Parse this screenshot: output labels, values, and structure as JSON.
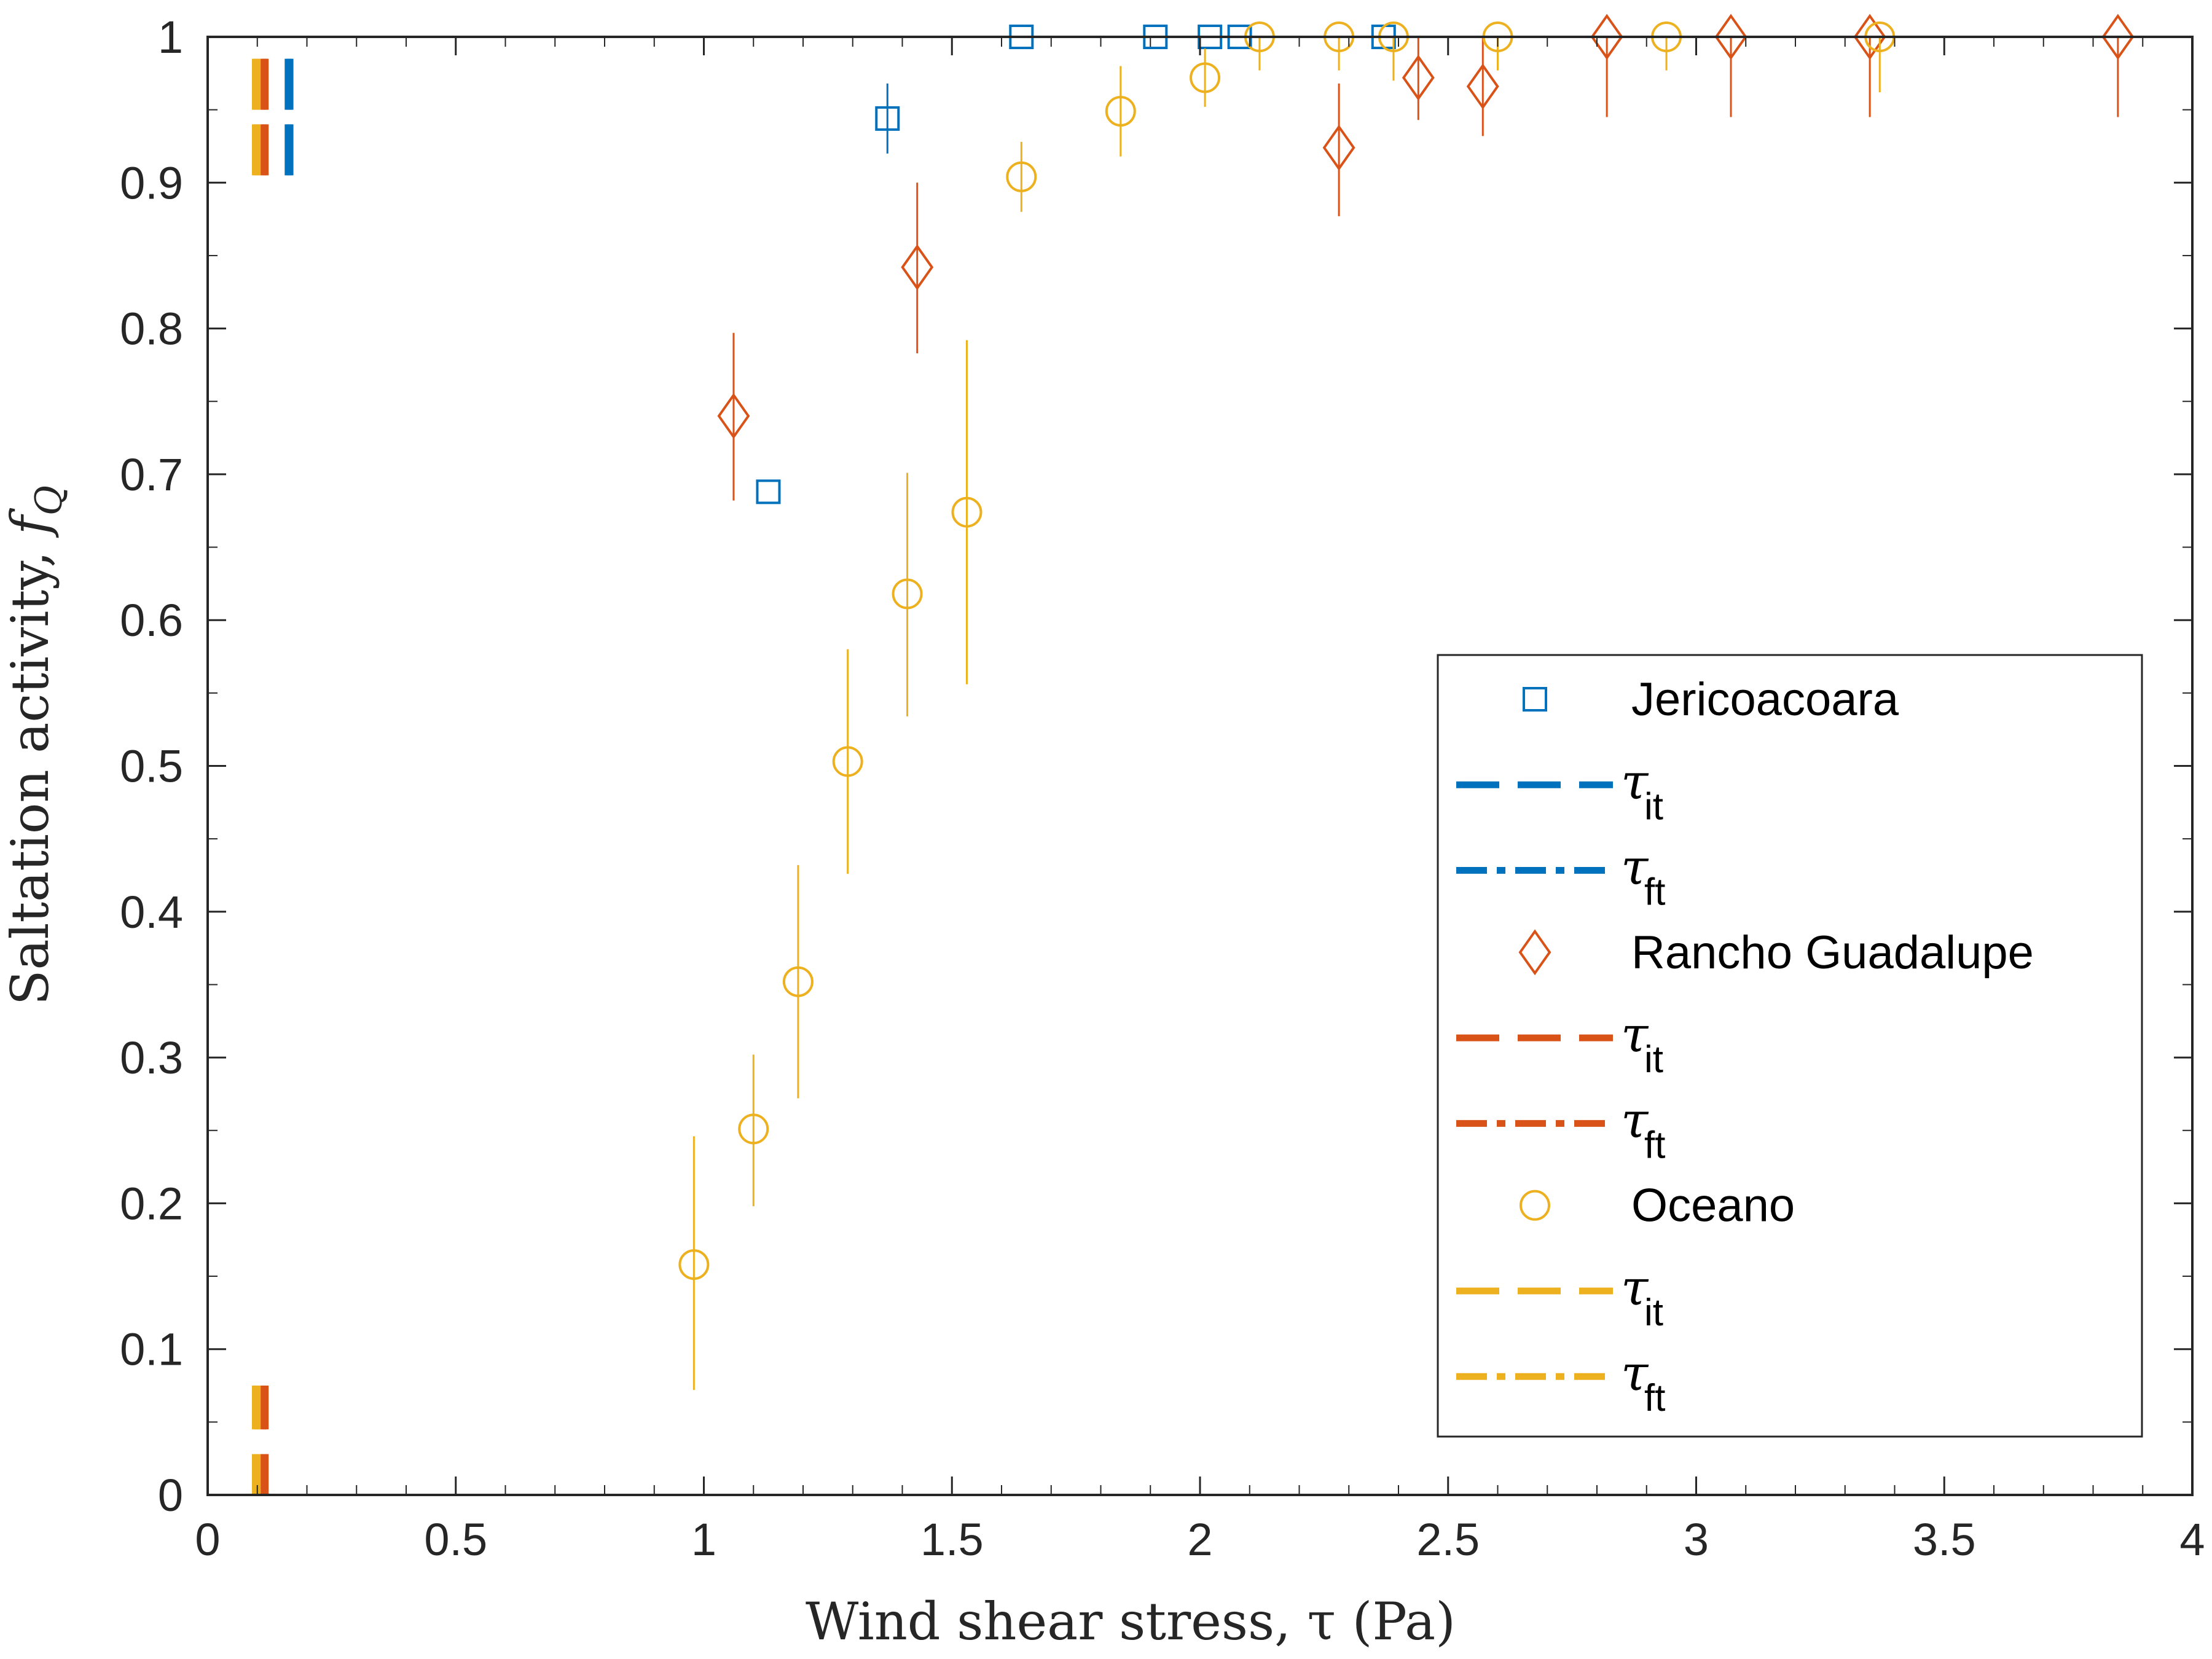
{
  "chart_data": {
    "type": "scatter",
    "xlabel": "Wind shear stress, τ (Pa)",
    "ylabel_main": "Saltation activity, ",
    "ylabel_sym": "f",
    "ylabel_sub": "Q",
    "xlim": [
      0,
      4
    ],
    "ylim": [
      0,
      1
    ],
    "xticks": [
      "0",
      "0.5",
      "1",
      "1.5",
      "2",
      "2.5",
      "3",
      "3.5",
      "4"
    ],
    "yticks": [
      "0",
      "0.1",
      "0.2",
      "0.3",
      "0.4",
      "0.5",
      "0.6",
      "0.7",
      "0.8",
      "0.9",
      "1"
    ],
    "grid": false,
    "legend_position": "lower-right",
    "series": [
      {
        "name": "Jericoacoara",
        "marker": "square",
        "color": "#0072BD",
        "points": [
          {
            "x": 1.13,
            "y": 0.688,
            "ylo": 0.688,
            "yhi": 0.688
          },
          {
            "x": 1.37,
            "y": 0.944,
            "ylo": 0.92,
            "yhi": 0.968
          },
          {
            "x": 1.64,
            "y": 1.0,
            "ylo": 1.0,
            "yhi": 1.0
          },
          {
            "x": 1.91,
            "y": 1.0,
            "ylo": 1.0,
            "yhi": 1.0
          },
          {
            "x": 2.02,
            "y": 1.0,
            "ylo": 1.0,
            "yhi": 1.0
          },
          {
            "x": 2.08,
            "y": 1.0,
            "ylo": 1.0,
            "yhi": 1.0
          },
          {
            "x": 2.37,
            "y": 1.0,
            "ylo": 1.0,
            "yhi": 1.0
          }
        ],
        "tau_it": 0.166,
        "tau_ft": 0.162,
        "tau_it_label": "τ",
        "tau_it_sub": "it",
        "tau_ft_label": "τ",
        "tau_ft_sub": "ft"
      },
      {
        "name": "Rancho Guadalupe",
        "marker": "diamond",
        "color": "#D95319",
        "points": [
          {
            "x": 1.06,
            "y": 0.74,
            "ylo": 0.682,
            "yhi": 0.797
          },
          {
            "x": 1.43,
            "y": 0.842,
            "ylo": 0.783,
            "yhi": 0.9
          },
          {
            "x": 2.28,
            "y": 0.924,
            "ylo": 0.877,
            "yhi": 0.968
          },
          {
            "x": 2.44,
            "y": 0.972,
            "ylo": 0.943,
            "yhi": 1.0
          },
          {
            "x": 2.57,
            "y": 0.966,
            "ylo": 0.932,
            "yhi": 1.0
          },
          {
            "x": 2.82,
            "y": 1.0,
            "ylo": 0.945,
            "yhi": 1.0
          },
          {
            "x": 3.07,
            "y": 1.0,
            "ylo": 0.945,
            "yhi": 1.0
          },
          {
            "x": 3.35,
            "y": 1.0,
            "ylo": 0.945,
            "yhi": 1.0
          },
          {
            "x": 3.85,
            "y": 1.0,
            "ylo": 0.945,
            "yhi": 1.0
          }
        ],
        "tau_it": 0.116,
        "tau_ft": 0.112,
        "tau_it_label": "τ",
        "tau_it_sub": "it",
        "tau_ft_label": "τ",
        "tau_ft_sub": "ft"
      },
      {
        "name": "Oceano",
        "marker": "circle",
        "color": "#EDB120",
        "points": [
          {
            "x": 0.98,
            "y": 0.158,
            "ylo": 0.072,
            "yhi": 0.246
          },
          {
            "x": 1.1,
            "y": 0.251,
            "ylo": 0.198,
            "yhi": 0.302
          },
          {
            "x": 1.19,
            "y": 0.352,
            "ylo": 0.272,
            "yhi": 0.432
          },
          {
            "x": 1.29,
            "y": 0.503,
            "ylo": 0.426,
            "yhi": 0.58
          },
          {
            "x": 1.41,
            "y": 0.618,
            "ylo": 0.534,
            "yhi": 0.701
          },
          {
            "x": 1.53,
            "y": 0.674,
            "ylo": 0.556,
            "yhi": 0.792
          },
          {
            "x": 1.64,
            "y": 0.904,
            "ylo": 0.88,
            "yhi": 0.928
          },
          {
            "x": 1.84,
            "y": 0.949,
            "ylo": 0.918,
            "yhi": 0.98
          },
          {
            "x": 2.01,
            "y": 0.972,
            "ylo": 0.952,
            "yhi": 0.992
          },
          {
            "x": 2.12,
            "y": 1.0,
            "ylo": 0.977,
            "yhi": 1.0
          },
          {
            "x": 2.28,
            "y": 1.0,
            "ylo": 0.977,
            "yhi": 1.0
          },
          {
            "x": 2.39,
            "y": 1.0,
            "ylo": 0.97,
            "yhi": 1.0
          },
          {
            "x": 2.6,
            "y": 1.0,
            "ylo": 0.977,
            "yhi": 1.0
          },
          {
            "x": 2.94,
            "y": 1.0,
            "ylo": 0.977,
            "yhi": 1.0
          },
          {
            "x": 3.37,
            "y": 1.0,
            "ylo": 0.962,
            "yhi": 1.0
          }
        ],
        "tau_it": 0.1,
        "tau_ft": 0.096,
        "tau_it_label": "τ",
        "tau_it_sub": "it",
        "tau_ft_label": "τ",
        "tau_ft_sub": "ft"
      }
    ]
  }
}
